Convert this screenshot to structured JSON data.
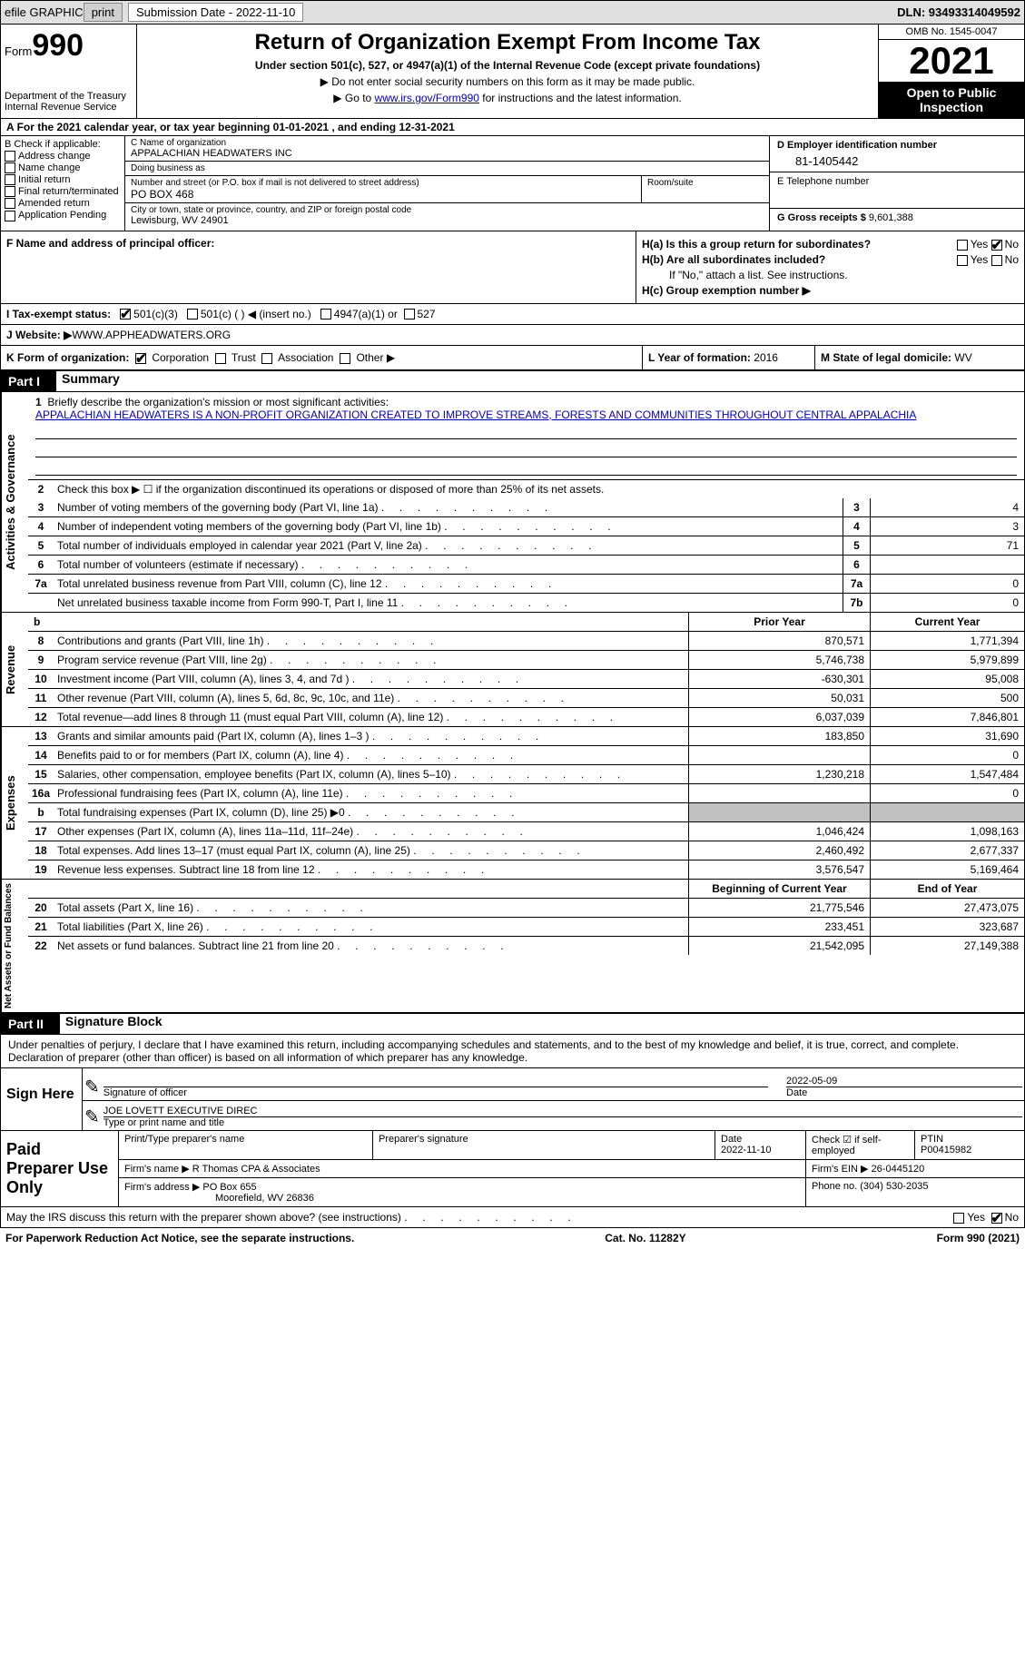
{
  "top_bar": {
    "efile_label": "efile GRAPHIC",
    "print_btn": "print",
    "sub_date_label": "Submission Date - 2022-11-10",
    "dln": "DLN: 93493314049592"
  },
  "header": {
    "form_prefix": "Form",
    "form_number": "990",
    "dept": "Department of the Treasury",
    "irs": "Internal Revenue Service",
    "title": "Return of Organization Exempt From Income Tax",
    "subtitle": "Under section 501(c), 527, or 4947(a)(1) of the Internal Revenue Code (except private foundations)",
    "note1": "▶ Do not enter social security numbers on this form as it may be made public.",
    "note2_prefix": "▶ Go to ",
    "note2_link": "www.irs.gov/Form990",
    "note2_suffix": " for instructions and the latest information.",
    "omb": "OMB No. 1545-0047",
    "year": "2021",
    "open": "Open to Public Inspection"
  },
  "tax_year": "For the 2021 calendar year, or tax year beginning 01-01-2021   , and ending 12-31-2021",
  "section_b": {
    "header": "B Check if applicable:",
    "items": [
      "Address change",
      "Name change",
      "Initial return",
      "Final return/terminated",
      "Amended return",
      "Application Pending"
    ]
  },
  "section_c": {
    "name_label": "C Name of organization",
    "name": "APPALACHIAN HEADWATERS INC",
    "dba_label": "Doing business as",
    "dba": "",
    "street_label": "Number and street (or P.O. box if mail is not delivered to street address)",
    "street": "PO BOX 468",
    "room_label": "Room/suite",
    "city_label": "City or town, state or province, country, and ZIP or foreign postal code",
    "city": "Lewisburg, WV  24901"
  },
  "section_d": {
    "ein_label": "D Employer identification number",
    "ein": "81-1405442",
    "phone_label": "E Telephone number",
    "phone": "",
    "gross_label": "G Gross receipts $",
    "gross": "9,601,388"
  },
  "section_f": {
    "label": "F  Name and address of principal officer:",
    "value": ""
  },
  "section_h": {
    "ha_label": "H(a)  Is this a group return for subordinates?",
    "ha_yes": "Yes",
    "ha_no": "No",
    "hb_label": "H(b)  Are all subordinates included?",
    "hb_yes": "Yes",
    "hb_no": "No",
    "hb_note": "If \"No,\" attach a list. See instructions.",
    "hc_label": "H(c)  Group exemption number ▶"
  },
  "section_i": {
    "label": "I   Tax-exempt status:",
    "opts": [
      "501(c)(3)",
      "501(c) (  ) ◀ (insert no.)",
      "4947(a)(1) or",
      "527"
    ]
  },
  "section_j": {
    "label": "J   Website: ▶ ",
    "value": "WWW.APPHEADWATERS.ORG"
  },
  "section_k": {
    "label": "K Form of organization:",
    "opts": [
      "Corporation",
      "Trust",
      "Association",
      "Other ▶"
    ],
    "l_label": "L Year of formation:",
    "l_value": "2016",
    "m_label": "M State of legal domicile:",
    "m_value": "WV"
  },
  "part1": {
    "num": "Part I",
    "title": "Summary",
    "tab_ag": "Activities & Governance",
    "tab_rev": "Revenue",
    "tab_exp": "Expenses",
    "tab_na": "Net Assets or Fund Balances",
    "line1_label": "Briefly describe the organization's mission or most significant activities:",
    "line1_value": "APPALACHIAN HEADWATERS IS A NON-PROFIT ORGANIZATION CREATED TO IMPROVE STREAMS, FORESTS AND COMMUNITIES THROUGHOUT CENTRAL APPALACHIA",
    "line2": "Check this box ▶ ☐  if the organization discontinued its operations or disposed of more than 25% of its net assets.",
    "rows": [
      {
        "n": "3",
        "t": "Number of voting members of the governing body (Part VI, line 1a)",
        "box": "3",
        "v": "4"
      },
      {
        "n": "4",
        "t": "Number of independent voting members of the governing body (Part VI, line 1b)",
        "box": "4",
        "v": "3"
      },
      {
        "n": "5",
        "t": "Total number of individuals employed in calendar year 2021 (Part V, line 2a)",
        "box": "5",
        "v": "71"
      },
      {
        "n": "6",
        "t": "Total number of volunteers (estimate if necessary)",
        "box": "6",
        "v": ""
      },
      {
        "n": "7a",
        "t": "Total unrelated business revenue from Part VIII, column (C), line 12",
        "box": "7a",
        "v": "0"
      },
      {
        "n": "",
        "t": "Net unrelated business taxable income from Form 990-T, Part I, line 11",
        "box": "7b",
        "v": "0"
      }
    ],
    "prior_hdr": "Prior Year",
    "curr_hdr": "Current Year",
    "rev_rows": [
      {
        "n": "8",
        "t": "Contributions and grants (Part VIII, line 1h)",
        "p": "870,571",
        "c": "1,771,394"
      },
      {
        "n": "9",
        "t": "Program service revenue (Part VIII, line 2g)",
        "p": "5,746,738",
        "c": "5,979,899"
      },
      {
        "n": "10",
        "t": "Investment income (Part VIII, column (A), lines 3, 4, and 7d )",
        "p": "-630,301",
        "c": "95,008"
      },
      {
        "n": "11",
        "t": "Other revenue (Part VIII, column (A), lines 5, 6d, 8c, 9c, 10c, and 11e)",
        "p": "50,031",
        "c": "500"
      },
      {
        "n": "12",
        "t": "Total revenue—add lines 8 through 11 (must equal Part VIII, column (A), line 12)",
        "p": "6,037,039",
        "c": "7,846,801"
      }
    ],
    "exp_rows": [
      {
        "n": "13",
        "t": "Grants and similar amounts paid (Part IX, column (A), lines 1–3 )",
        "p": "183,850",
        "c": "31,690"
      },
      {
        "n": "14",
        "t": "Benefits paid to or for members (Part IX, column (A), line 4)",
        "p": "",
        "c": "0"
      },
      {
        "n": "15",
        "t": "Salaries, other compensation, employee benefits (Part IX, column (A), lines 5–10)",
        "p": "1,230,218",
        "c": "1,547,484"
      },
      {
        "n": "16a",
        "t": "Professional fundraising fees (Part IX, column (A), line 11e)",
        "p": "",
        "c": "0"
      },
      {
        "n": "b",
        "t": "Total fundraising expenses (Part IX, column (D), line 25) ▶0",
        "p": "GRAY",
        "c": "GRAY"
      },
      {
        "n": "17",
        "t": "Other expenses (Part IX, column (A), lines 11a–11d, 11f–24e)",
        "p": "1,046,424",
        "c": "1,098,163"
      },
      {
        "n": "18",
        "t": "Total expenses. Add lines 13–17 (must equal Part IX, column (A), line 25)",
        "p": "2,460,492",
        "c": "2,677,337"
      },
      {
        "n": "19",
        "t": "Revenue less expenses. Subtract line 18 from line 12",
        "p": "3,576,547",
        "c": "5,169,464"
      }
    ],
    "na_hdr_begin": "Beginning of Current Year",
    "na_hdr_end": "End of Year",
    "na_rows": [
      {
        "n": "20",
        "t": "Total assets (Part X, line 16)",
        "p": "21,775,546",
        "c": "27,473,075"
      },
      {
        "n": "21",
        "t": "Total liabilities (Part X, line 26)",
        "p": "233,451",
        "c": "323,687"
      },
      {
        "n": "22",
        "t": "Net assets or fund balances. Subtract line 21 from line 20",
        "p": "21,542,095",
        "c": "27,149,388"
      }
    ]
  },
  "part2": {
    "num": "Part II",
    "title": "Signature Block",
    "declaration": "Under penalties of perjury, I declare that I have examined this return, including accompanying schedules and statements, and to the best of my knowledge and belief, it is true, correct, and complete. Declaration of preparer (other than officer) is based on all information of which preparer has any knowledge.",
    "sign_here": "Sign Here",
    "sig_officer": "Signature of officer",
    "sig_date_val": "2022-05-09",
    "sig_date": "Date",
    "name_title_val": "JOE LOVETT  EXECUTIVE DIREC",
    "name_title": "Type or print name and title",
    "paid_prep": "Paid Preparer Use Only",
    "prep_name_label": "Print/Type preparer's name",
    "prep_sig_label": "Preparer's signature",
    "prep_date_label": "Date",
    "prep_date": "2022-11-10",
    "prep_check_label": "Check ☑ if self-employed",
    "ptin_label": "PTIN",
    "ptin": "P00415982",
    "firm_name_label": "Firm's name     ▶",
    "firm_name": "R Thomas CPA & Associates",
    "firm_ein_label": "Firm's EIN ▶",
    "firm_ein": "26-0445120",
    "firm_addr_label": "Firm's address ▶",
    "firm_addr1": "PO Box 655",
    "firm_addr2": "Moorefield, WV  26836",
    "phone_label": "Phone no.",
    "phone": "(304) 530-2035",
    "discuss": "May the IRS discuss this return with the preparer shown above? (see instructions)",
    "discuss_yes": "Yes",
    "discuss_no": "No"
  },
  "footer": {
    "paperwork": "For Paperwork Reduction Act Notice, see the separate instructions.",
    "cat": "Cat. No. 11282Y",
    "form": "Form 990 (2021)"
  }
}
